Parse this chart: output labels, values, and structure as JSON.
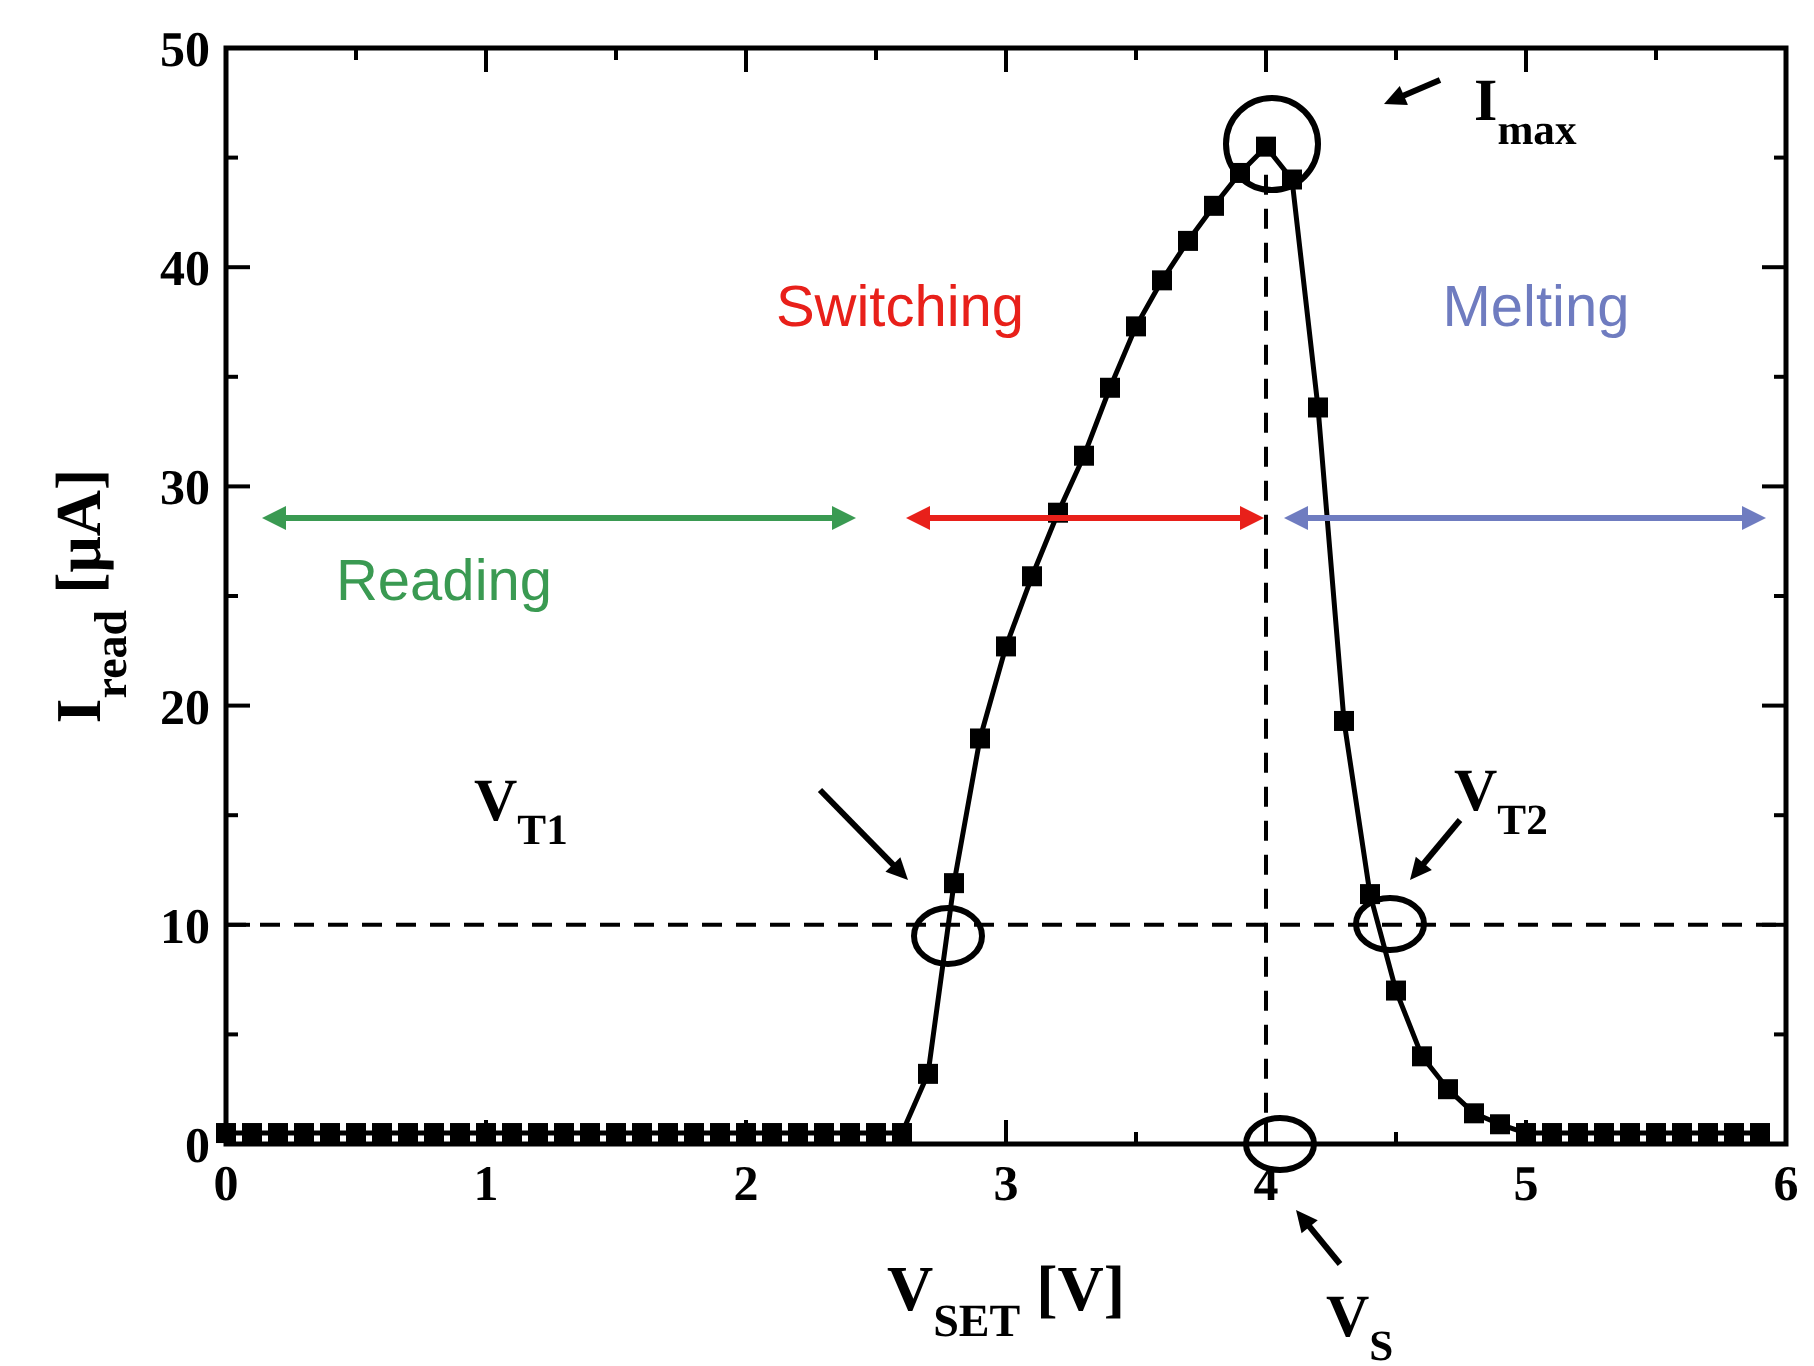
{
  "chart_data": {
    "type": "line",
    "xlabel": "V$_{SET}$ [V]",
    "ylabel": "I$_{read}$ [μA]",
    "x": [
      0,
      0.1,
      0.2,
      0.3,
      0.4,
      0.5,
      0.6,
      0.7,
      0.8,
      0.9,
      1.0,
      1.1,
      1.2,
      1.3,
      1.4,
      1.5,
      1.6,
      1.7,
      1.8,
      1.9,
      2.0,
      2.1,
      2.2,
      2.3,
      2.4,
      2.5,
      2.6,
      2.7,
      2.8,
      2.9,
      3.0,
      3.1,
      3.2,
      3.3,
      3.4,
      3.5,
      3.6,
      3.7,
      3.8,
      3.9,
      4.0,
      4.1,
      4.2,
      4.3,
      4.4,
      4.5,
      4.6,
      4.7,
      4.8,
      4.9,
      5.0,
      5.1,
      5.2,
      5.3,
      5.4,
      5.5,
      5.6,
      5.7,
      5.8,
      5.9
    ],
    "series": [
      {
        "color": "#000000",
        "values": [
          0.5,
          0.5,
          0.5,
          0.5,
          0.5,
          0.5,
          0.5,
          0.5,
          0.5,
          0.5,
          0.5,
          0.5,
          0.5,
          0.5,
          0.5,
          0.5,
          0.5,
          0.5,
          0.5,
          0.5,
          0.5,
          0.5,
          0.5,
          0.5,
          0.5,
          0.5,
          0.5,
          3.2,
          11.9,
          18.5,
          22.7,
          25.9,
          28.8,
          31.4,
          34.5,
          37.3,
          39.4,
          41.2,
          42.8,
          44.3,
          45.5,
          44,
          33.6,
          19.3,
          11.4,
          7,
          4,
          2.5,
          1.4,
          0.9,
          0.5,
          0.5,
          0.5,
          0.5,
          0.5,
          0.5,
          0.5,
          0.5,
          0.5,
          0.5
        ]
      }
    ],
    "marker": "square",
    "line_style": "solid",
    "grid": false,
    "xlim": [
      0,
      6
    ],
    "ylim": [
      0,
      50
    ],
    "xticks": [
      0,
      1,
      2,
      3,
      4,
      5,
      6
    ],
    "yticks": [
      0,
      10,
      20,
      30,
      40,
      50
    ],
    "ref_lines": [
      {
        "axis": "y",
        "value": 10,
        "line_style": "dashed",
        "color": "#000000"
      },
      {
        "axis": "x",
        "value": 4,
        "line_style": "dashed",
        "color": "#000000"
      }
    ],
    "annotations": [
      "Reading",
      "Switching",
      "Melting",
      "I$_{max}$",
      "V$_{T1}$",
      "V$_{T2}$",
      "V$_{S}$"
    ]
  }
}
